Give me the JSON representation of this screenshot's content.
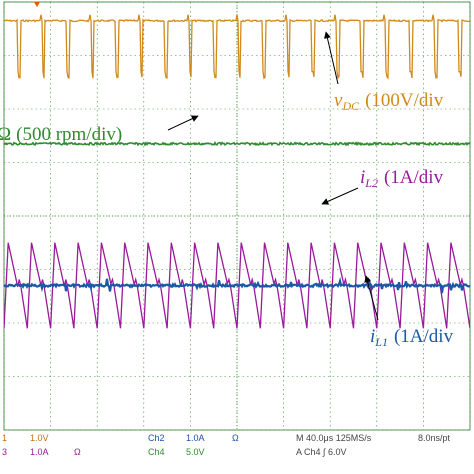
{
  "chart_data": {
    "type": "line",
    "title": "",
    "grid": true,
    "divisions": {
      "x": 10,
      "y": 8
    },
    "traces": [
      {
        "id": "vdc",
        "name": "v_DC",
        "label": {
          "main": "v",
          "sub": "DC",
          "scale": "(100V/div"
        },
        "color": "#d08a1c",
        "shape": "pulse-train",
        "level_div": 7.65,
        "pulse_low_div": 6.7,
        "pulses": 19
      },
      {
        "id": "omega",
        "name": "Ω",
        "label": {
          "main": "Ω",
          "sub": "",
          "scale": "(500 rpm/div)"
        },
        "color": "#2e8b2e",
        "shape": "flat-noisy",
        "level_div": 5.35
      },
      {
        "id": "il2",
        "name": "i_L2",
        "label": {
          "main": "i",
          "sub": "L2",
          "scale": "(1A/div"
        },
        "color": "#9a1a9a",
        "shape": "sawtooth",
        "center_div": 2.7,
        "amplitude_div": 0.8,
        "cycles": 20
      },
      {
        "id": "il1",
        "name": "i_L1",
        "label": {
          "main": "i",
          "sub": "L1",
          "scale": "(1A/div"
        },
        "color": "#1a58a8",
        "shape": "flat-noisy",
        "level_div": 2.7
      }
    ]
  },
  "status_bar": {
    "row1": [
      {
        "text": "1",
        "color": "#c07010"
      },
      {
        "text": "1.0V",
        "color": "#c07010"
      },
      {
        "text": "Ch2",
        "color": "#2050b0"
      },
      {
        "text": "1.0A",
        "color": "#2050b0"
      },
      {
        "text": "Ω",
        "color": "#2050b0"
      },
      {
        "text": "M 40.0μs 125MS/s",
        "color": "#444444"
      },
      {
        "text": "8.0ns/pt",
        "color": "#444444"
      }
    ],
    "row2": [
      {
        "text": "3",
        "color": "#9a1a9a"
      },
      {
        "text": "1.0A",
        "color": "#9a1a9a"
      },
      {
        "text": "Ω",
        "color": "#9a1a9a"
      },
      {
        "text": "Ch4",
        "color": "#2e8b2e"
      },
      {
        "text": "5.0V",
        "color": "#2e8b2e"
      },
      {
        "text": "A Ch4 ∫ 6.0V",
        "color": "#444444"
      }
    ]
  }
}
